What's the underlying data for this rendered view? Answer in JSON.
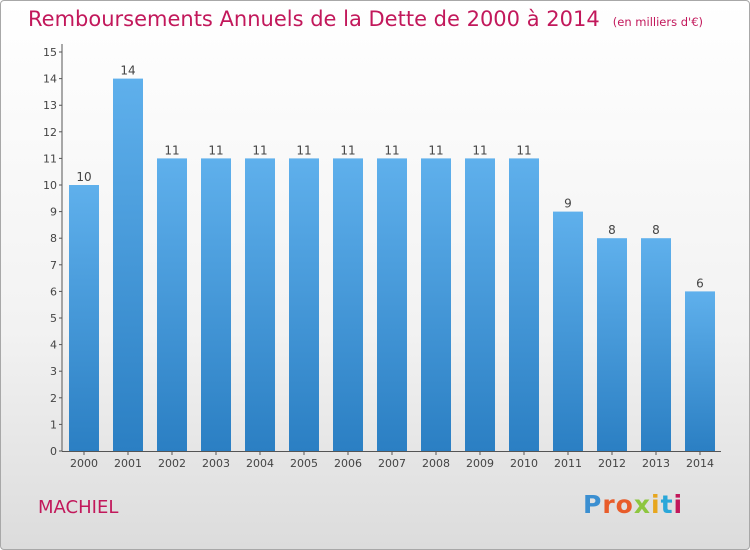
{
  "header": {
    "title": "Remboursements Annuels de la Dette de 2000 à 2014",
    "subtitle": "(en milliers d'€)"
  },
  "footer": {
    "commune": "MACHIEL",
    "brand": "Proxiti",
    "brand_colors": [
      "#3b8fd1",
      "#e85c2a",
      "#e85c2a",
      "#8dc63f",
      "#e7a61e",
      "#2aa7d9",
      "#c2185b"
    ]
  },
  "colors": {
    "bar_top": "#5fb0ec",
    "bar_bottom": "#2b7fc3",
    "title": "#c2185b"
  },
  "chart_data": {
    "type": "bar",
    "categories": [
      "2000",
      "2001",
      "2002",
      "2003",
      "2004",
      "2005",
      "2006",
      "2007",
      "2008",
      "2009",
      "2010",
      "2011",
      "2012",
      "2013",
      "2014"
    ],
    "values": [
      10,
      14,
      11,
      11,
      11,
      11,
      11,
      11,
      11,
      11,
      11,
      9,
      8,
      8,
      6
    ],
    "ylim": [
      0,
      15
    ],
    "yticks": [
      0,
      1,
      2,
      3,
      4,
      5,
      6,
      7,
      8,
      9,
      10,
      11,
      12,
      13,
      14,
      15
    ],
    "grid": false,
    "legend": "none"
  }
}
